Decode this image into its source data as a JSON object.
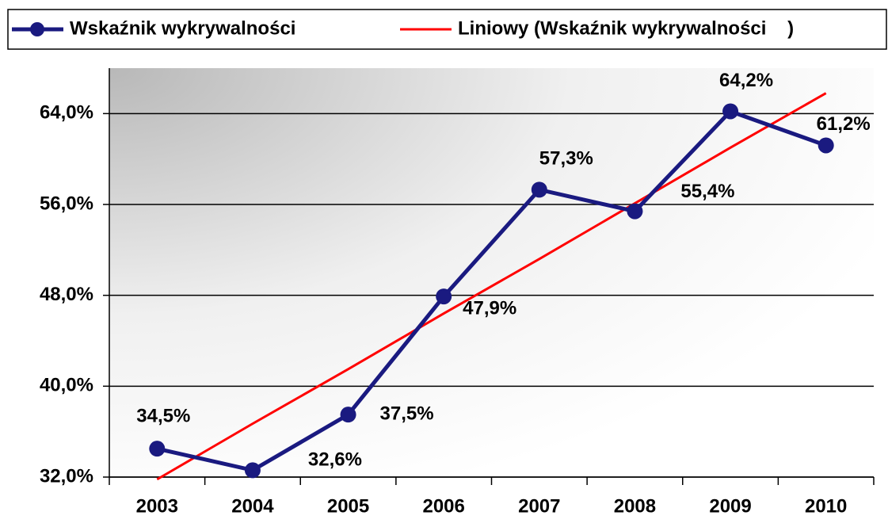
{
  "chart_data": {
    "type": "line",
    "categories": [
      "2003",
      "2004",
      "2005",
      "2006",
      "2007",
      "2008",
      "2009",
      "2010"
    ],
    "series": [
      {
        "name": "Wskaźnik wykrywalności",
        "color": "#1a1a80",
        "markers": true,
        "values": [
          34.5,
          32.6,
          37.5,
          47.9,
          57.3,
          55.4,
          64.2,
          61.2
        ],
        "value_labels": [
          "34,5%",
          "32,6%",
          "37,5%",
          "47,9%",
          "57,3%",
          "55,4%",
          "64,2%",
          "61,2%"
        ]
      },
      {
        "name": "Liniowy (Wskaźnik wykrywalności    )",
        "color": "#ff0000",
        "markers": false,
        "values": [
          31.8,
          36.7,
          41.5,
          46.4,
          51.2,
          56.1,
          61.0,
          65.8
        ]
      }
    ],
    "ylim": [
      32,
      68
    ],
    "yticks": [
      {
        "value": 32,
        "label": "32,0%"
      },
      {
        "value": 40,
        "label": "40,0%"
      },
      {
        "value": 48,
        "label": "48,0%"
      },
      {
        "value": 56,
        "label": "56,0%"
      },
      {
        "value": 64,
        "label": "64,0%"
      }
    ],
    "grid": true,
    "legend": "top"
  }
}
